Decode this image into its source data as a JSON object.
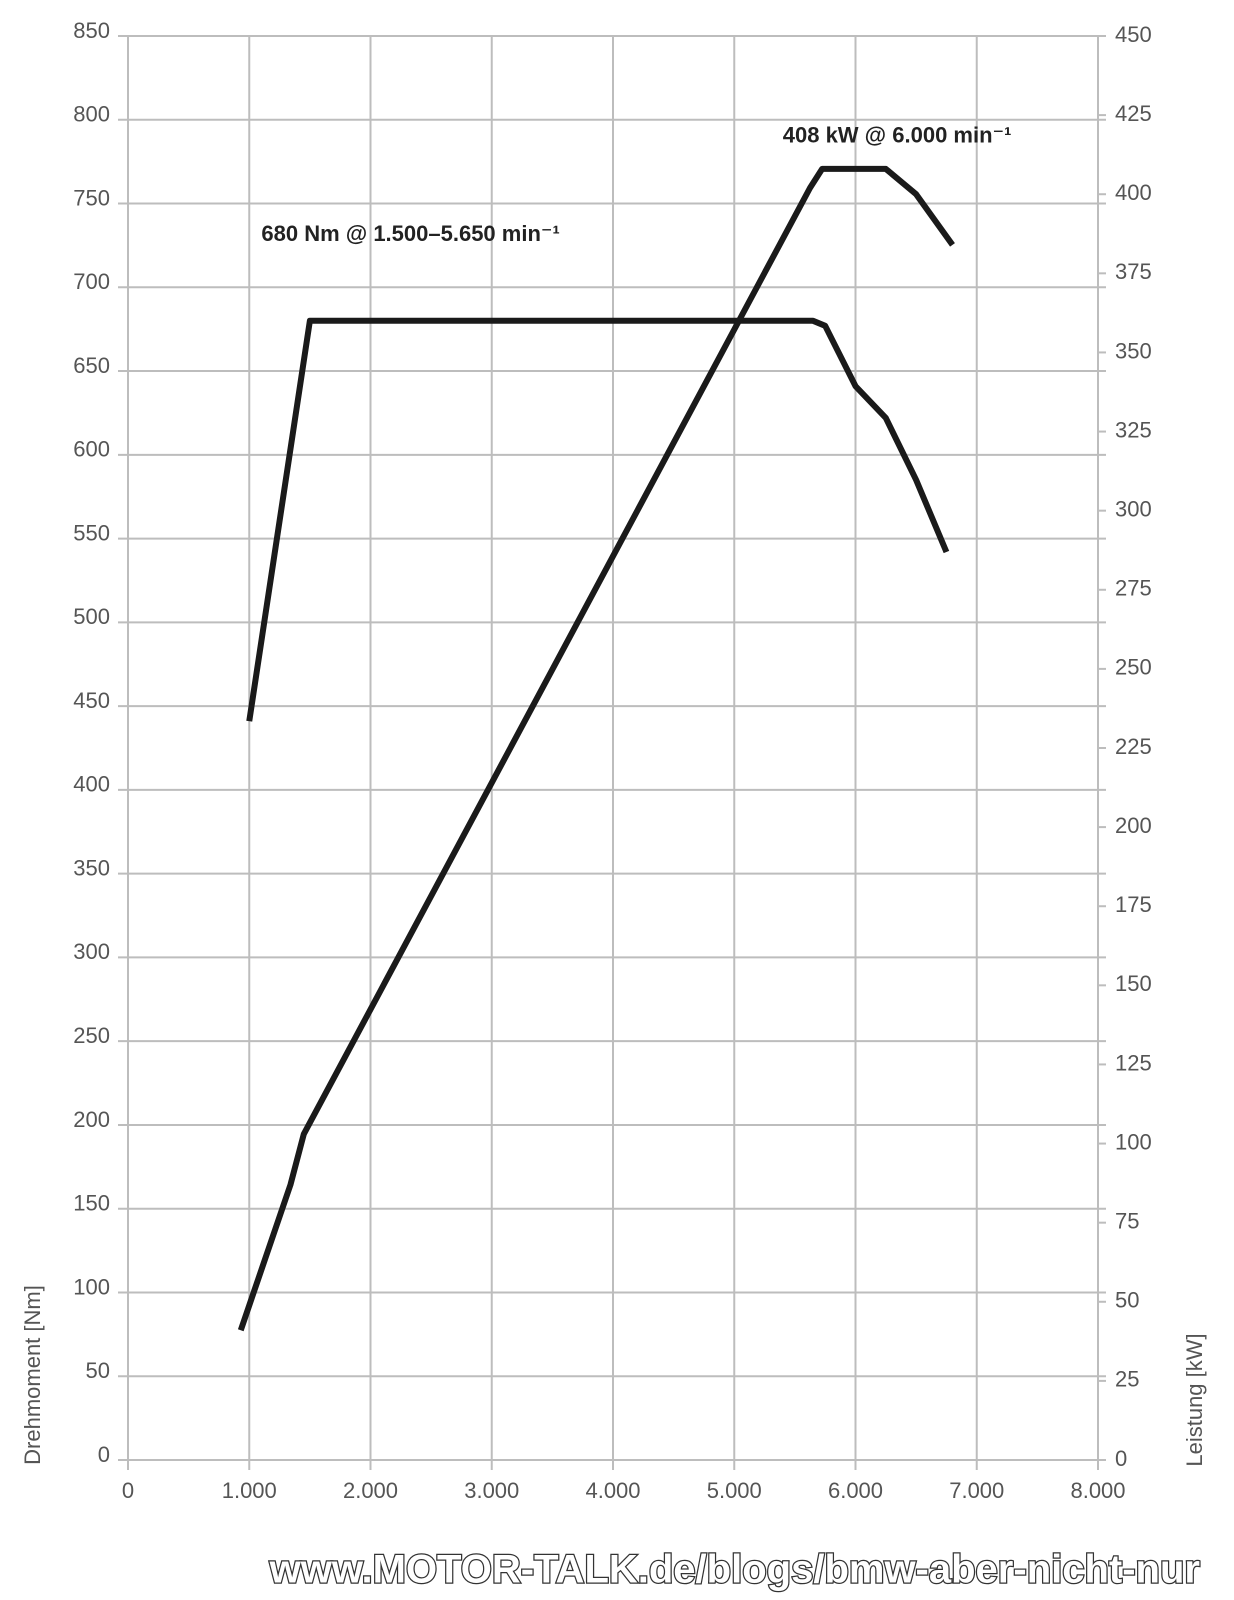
{
  "chart_data": {
    "type": "line",
    "xlim": [
      0,
      8000
    ],
    "xticks": [
      0,
      {
        "value": 1000,
        "label": "1.000"
      },
      {
        "value": 2000,
        "label": "2.000"
      },
      {
        "value": 3000,
        "label": "3.000"
      },
      {
        "value": 4000,
        "label": "4.000"
      },
      {
        "value": 5000,
        "label": "5.000"
      },
      {
        "value": 6000,
        "label": "6.000"
      },
      {
        "value": 7000,
        "label": "7.000"
      },
      {
        "value": 8000,
        "label": "8.000"
      }
    ],
    "ylim": [
      0,
      850
    ],
    "yticks": [
      0,
      50,
      100,
      150,
      200,
      250,
      300,
      350,
      400,
      450,
      500,
      550,
      600,
      650,
      700,
      750,
      800,
      850
    ],
    "y2lim": [
      0,
      450
    ],
    "y2ticks": [
      0,
      25,
      50,
      75,
      100,
      125,
      150,
      175,
      200,
      225,
      250,
      275,
      300,
      325,
      350,
      375,
      400,
      425,
      450
    ],
    "ylabel": "Drehmoment [Nm]",
    "y2label": "Leistung [kW]",
    "grid": true,
    "series": [
      {
        "name": "Drehmoment",
        "color": "#1a1a1a",
        "x": [
          1000,
          1500,
          5650,
          5750,
          6000,
          6250,
          6500,
          6750
        ],
        "values": [
          441,
          680,
          680,
          677,
          641,
          622,
          585,
          542
        ]
      },
      {
        "name": "Leistung",
        "color": "#1a1a1a",
        "axis": "y2",
        "x": [
          930,
          1340,
          1450,
          5625,
          5725,
          6250,
          6500,
          6800
        ],
        "values": [
          41,
          87,
          103,
          402,
          408,
          408,
          400,
          384
        ]
      }
    ],
    "annotations": [
      {
        "text": "408 kW @ 6.000 min⁻¹",
        "x": 5400,
        "y": 408
      },
      {
        "text": "680 Nm @ 1.500–5.650 min⁻¹",
        "x": 1100,
        "y": 712
      }
    ],
    "watermark": "www.MOTOR-TALK.de/blogs/bmw-aber-nicht-nur"
  }
}
